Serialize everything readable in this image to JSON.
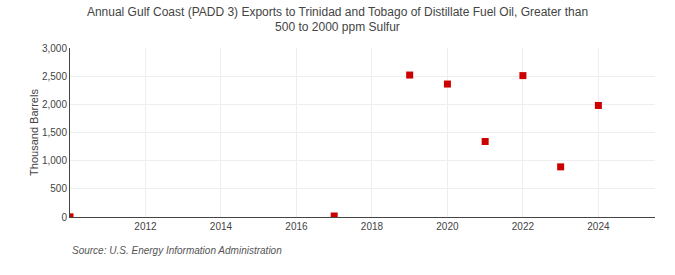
{
  "chart_data": {
    "type": "scatter",
    "title": "Annual Gulf Coast (PADD 3) Exports to Trinidad and Tobago of Distillate Fuel Oil, Greater than\n500 to 2000 ppm Sulfur",
    "y_label": "Thousand Barrels",
    "source": "Source: U.S. Energy Information Administration",
    "x": [
      2010,
      2017,
      2019,
      2020,
      2021,
      2022,
      2023,
      2024
    ],
    "values": [
      3,
      18,
      2520,
      2360,
      1340,
      2510,
      890,
      1980
    ],
    "color": "#cc0000",
    "marker": "square",
    "xlim": [
      2010.0,
      2025.5
    ],
    "xticks": [
      2012,
      2014,
      2016,
      2018,
      2020,
      2022,
      2024
    ],
    "ylim": [
      0,
      3000
    ],
    "yticks": [
      0,
      500,
      {
        "value": 1000,
        "label": "1,000"
      },
      {
        "value": 1500,
        "label": "1,500"
      },
      {
        "value": 2000,
        "label": "2,000"
      },
      {
        "value": 2500,
        "label": "2,500"
      },
      {
        "value": 3000,
        "label": "3,000"
      }
    ],
    "grid": true
  }
}
